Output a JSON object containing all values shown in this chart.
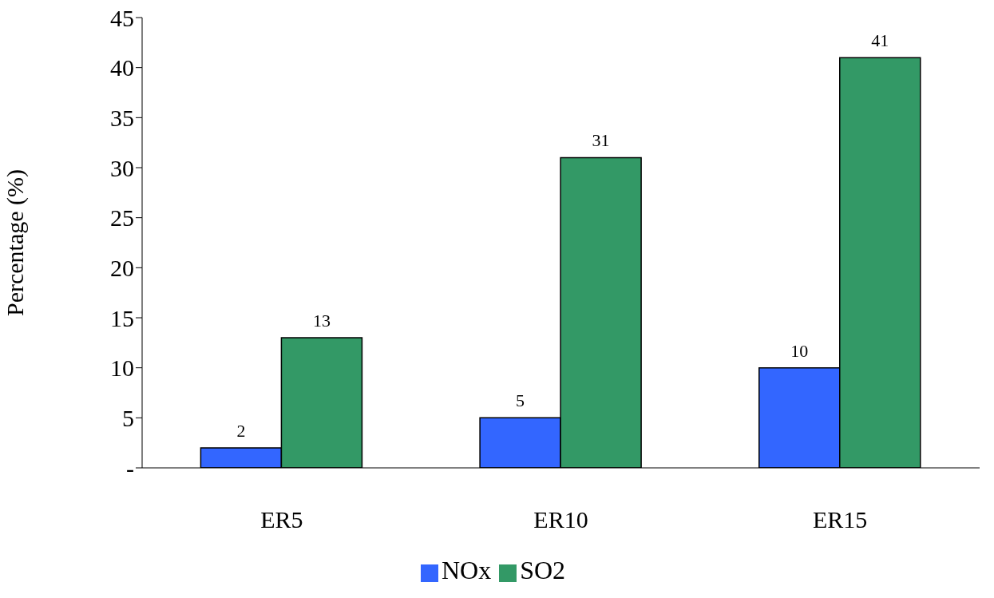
{
  "chart_data": {
    "type": "bar",
    "ylabel": "Percentage (%)",
    "categories": [
      "ER5",
      "ER10",
      "ER15"
    ],
    "series": [
      {
        "name": "NOx",
        "color": "#3366ff",
        "values": [
          2,
          5,
          10
        ]
      },
      {
        "name": "SO2",
        "color": "#339966",
        "values": [
          13,
          31,
          41
        ]
      }
    ],
    "ylim": [
      0,
      45
    ],
    "yticks": [
      {
        "value": 0,
        "label": "-"
      },
      5,
      10,
      15,
      20,
      25,
      30,
      35,
      40,
      45
    ],
    "data_labels": true,
    "grid": false,
    "legend": "bottom"
  }
}
